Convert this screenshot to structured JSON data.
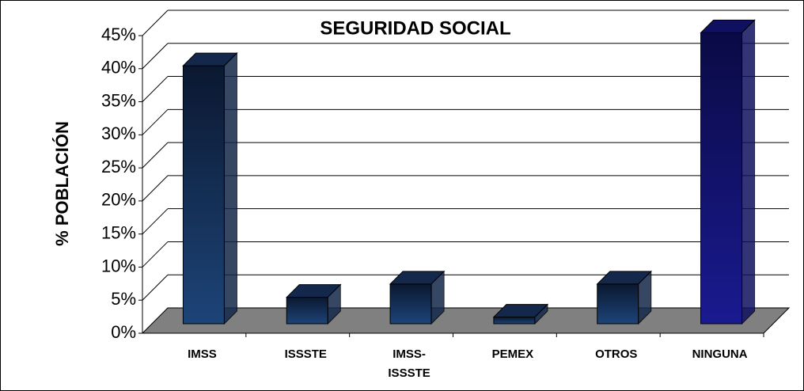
{
  "chart_data": {
    "type": "bar3d",
    "title": "SEGURIDAD SOCIAL",
    "y_label": "% POBLACIÓN",
    "categories": [
      "IMSS",
      "ISSSTE",
      "IMSS-ISSSTE",
      "PEMEX",
      "OTROS",
      "NINGUNA"
    ],
    "values": [
      39,
      4,
      6,
      1,
      6,
      44
    ],
    "colors": [
      "#13284a",
      "#13284a",
      "#13284a",
      "#13284a",
      "#13284a",
      "#101060"
    ],
    "ylim": [
      0,
      45
    ],
    "yticks": [
      {
        "value": 0,
        "label": "0%"
      },
      {
        "value": 5,
        "label": "5%"
      },
      {
        "value": 10,
        "label": "10%"
      },
      {
        "value": 15,
        "label": "15%"
      },
      {
        "value": 20,
        "label": "20%"
      },
      {
        "value": 25,
        "label": "25%"
      },
      {
        "value": 30,
        "label": "30%"
      },
      {
        "value": 35,
        "label": "35%"
      },
      {
        "value": 40,
        "label": "40%"
      },
      {
        "value": 45,
        "label": "45%"
      }
    ],
    "grid": true
  }
}
